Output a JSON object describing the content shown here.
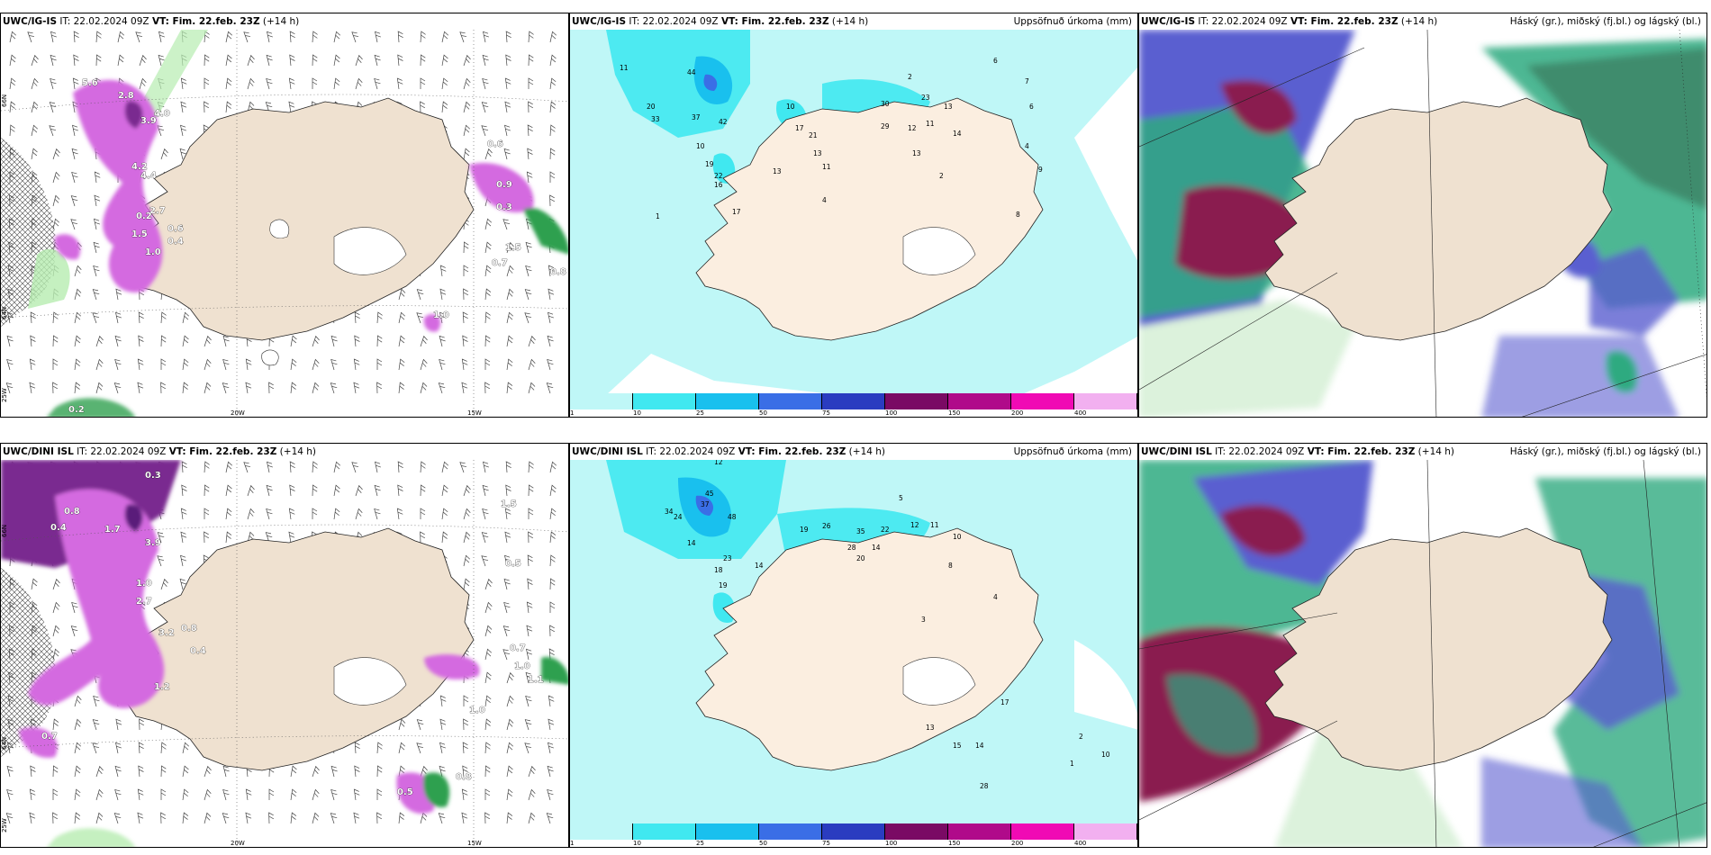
{
  "panels": [
    {
      "model": "UWC/IG-IS",
      "it": "IT: 22.02.2024 09Z",
      "vt": "VT: Fim. 22.feb. 23Z",
      "lead": "(+14 h)",
      "title": ""
    },
    {
      "model": "UWC/IG-IS",
      "it": "IT: 22.02.2024 09Z",
      "vt": "VT: Fim. 22.feb. 23Z",
      "lead": "(+14 h)",
      "title": "Uppsöfnuð úrkoma (mm)"
    },
    {
      "model": "UWC/IG-IS",
      "it": "IT: 22.02.2024 09Z",
      "vt": "VT: Fim. 22.feb. 23Z",
      "lead": "(+14 h)",
      "title": "Háský (gr.), miðský (fj.bl.) og lágský (bl.)"
    },
    {
      "model": "UWC/DINI ISL",
      "it": "IT: 22.02.2024 09Z",
      "vt": "VT: Fim. 22.feb. 23Z",
      "lead": "(+14 h)",
      "title": ""
    },
    {
      "model": "UWC/DINI ISL",
      "it": "IT: 22.02.2024 09Z",
      "vt": "VT: Fim. 22.feb. 23Z",
      "lead": "(+14 h)",
      "title": "Uppsöfnuð úrkoma (mm)"
    },
    {
      "model": "UWC/DINI ISL",
      "it": "IT: 22.02.2024 09Z",
      "vt": "VT: Fim. 22.feb. 23Z",
      "lead": "(+14 h)",
      "title": "Háský (gr.), miðský (fj.bl.) og lágský (bl.)"
    }
  ],
  "axis_labels": {
    "lon_20w": "20W",
    "lon_15w": "15W",
    "lon_25w": "25W",
    "lat_66n": "66N",
    "lat_64n": "64N"
  },
  "colorbar": {
    "ticks": [
      "1",
      "10",
      "25",
      "50",
      "75",
      "100",
      "150",
      "200",
      "400"
    ],
    "colors": [
      "#bff7f7",
      "#40e8f0",
      "#19c0ee",
      "#3a6ee6",
      "#2a3cc0",
      "#7a0a64",
      "#b00a8a",
      "#f00ab4",
      "#f2b0f0"
    ]
  },
  "precip_values_top": [
    {
      "v": "11"
    },
    {
      "v": "20"
    },
    {
      "v": "33"
    },
    {
      "v": "44"
    },
    {
      "v": "37"
    },
    {
      "v": "42"
    },
    {
      "v": "10"
    },
    {
      "v": "19"
    },
    {
      "v": "22"
    },
    {
      "v": "16"
    },
    {
      "v": "17"
    },
    {
      "v": "10"
    },
    {
      "v": "17"
    },
    {
      "v": "21"
    },
    {
      "v": "13"
    },
    {
      "v": "13"
    },
    {
      "v": "11"
    },
    {
      "v": "30"
    },
    {
      "v": "29"
    },
    {
      "v": "23"
    },
    {
      "v": "13"
    },
    {
      "v": "14"
    },
    {
      "v": "6"
    },
    {
      "v": "7"
    },
    {
      "v": "6"
    },
    {
      "v": "4"
    },
    {
      "v": "9"
    },
    {
      "v": "8"
    },
    {
      "v": "2"
    },
    {
      "v": "12"
    },
    {
      "v": "11"
    },
    {
      "v": "13"
    },
    {
      "v": "4"
    },
    {
      "v": "2"
    },
    {
      "v": "1"
    }
  ],
  "precip_values_bottom": [
    {
      "v": "12"
    },
    {
      "v": "37"
    },
    {
      "v": "45"
    },
    {
      "v": "48"
    },
    {
      "v": "24"
    },
    {
      "v": "34"
    },
    {
      "v": "14"
    },
    {
      "v": "23"
    },
    {
      "v": "18"
    },
    {
      "v": "19"
    },
    {
      "v": "14"
    },
    {
      "v": "19"
    },
    {
      "v": "26"
    },
    {
      "v": "35"
    },
    {
      "v": "28"
    },
    {
      "v": "20"
    },
    {
      "v": "22"
    },
    {
      "v": "14"
    },
    {
      "v": "12"
    },
    {
      "v": "11"
    },
    {
      "v": "10"
    },
    {
      "v": "17"
    },
    {
      "v": "5"
    },
    {
      "v": "3"
    },
    {
      "v": "8"
    },
    {
      "v": "4"
    },
    {
      "v": "13"
    },
    {
      "v": "15"
    },
    {
      "v": "14"
    },
    {
      "v": "28"
    },
    {
      "v": "1"
    },
    {
      "v": "2"
    },
    {
      "v": "10"
    }
  ],
  "wind_values_top": [
    {
      "v": "5.6"
    },
    {
      "v": "2.8"
    },
    {
      "v": "3.9"
    },
    {
      "v": "4.0"
    },
    {
      "v": "4.2"
    },
    {
      "v": "4.4"
    },
    {
      "v": "2.7"
    },
    {
      "v": "0.2"
    },
    {
      "v": "1.5"
    },
    {
      "v": "0.6"
    },
    {
      "v": "0.4"
    },
    {
      "v": "1.0"
    },
    {
      "v": "0.6"
    },
    {
      "v": "0.9"
    },
    {
      "v": "0.3"
    },
    {
      "v": "1.5"
    },
    {
      "v": "0.7"
    },
    {
      "v": "0.8"
    },
    {
      "v": "1.0"
    },
    {
      "v": "0.2"
    }
  ],
  "wind_values_bottom": [
    {
      "v": "0.3"
    },
    {
      "v": "0.8"
    },
    {
      "v": "0.4"
    },
    {
      "v": "1.7"
    },
    {
      "v": "3.9"
    },
    {
      "v": "1.0"
    },
    {
      "v": "2.7"
    },
    {
      "v": "3.2"
    },
    {
      "v": "0.8"
    },
    {
      "v": "0.4"
    },
    {
      "v": "1.2"
    },
    {
      "v": "0.7"
    },
    {
      "v": "0.5"
    },
    {
      "v": "1.5"
    },
    {
      "v": "0.7"
    },
    {
      "v": "1.0"
    },
    {
      "v": "1.1"
    },
    {
      "v": "1.0"
    },
    {
      "v": "0.8"
    },
    {
      "v": "1.7"
    },
    {
      "v": "0.5"
    }
  ]
}
